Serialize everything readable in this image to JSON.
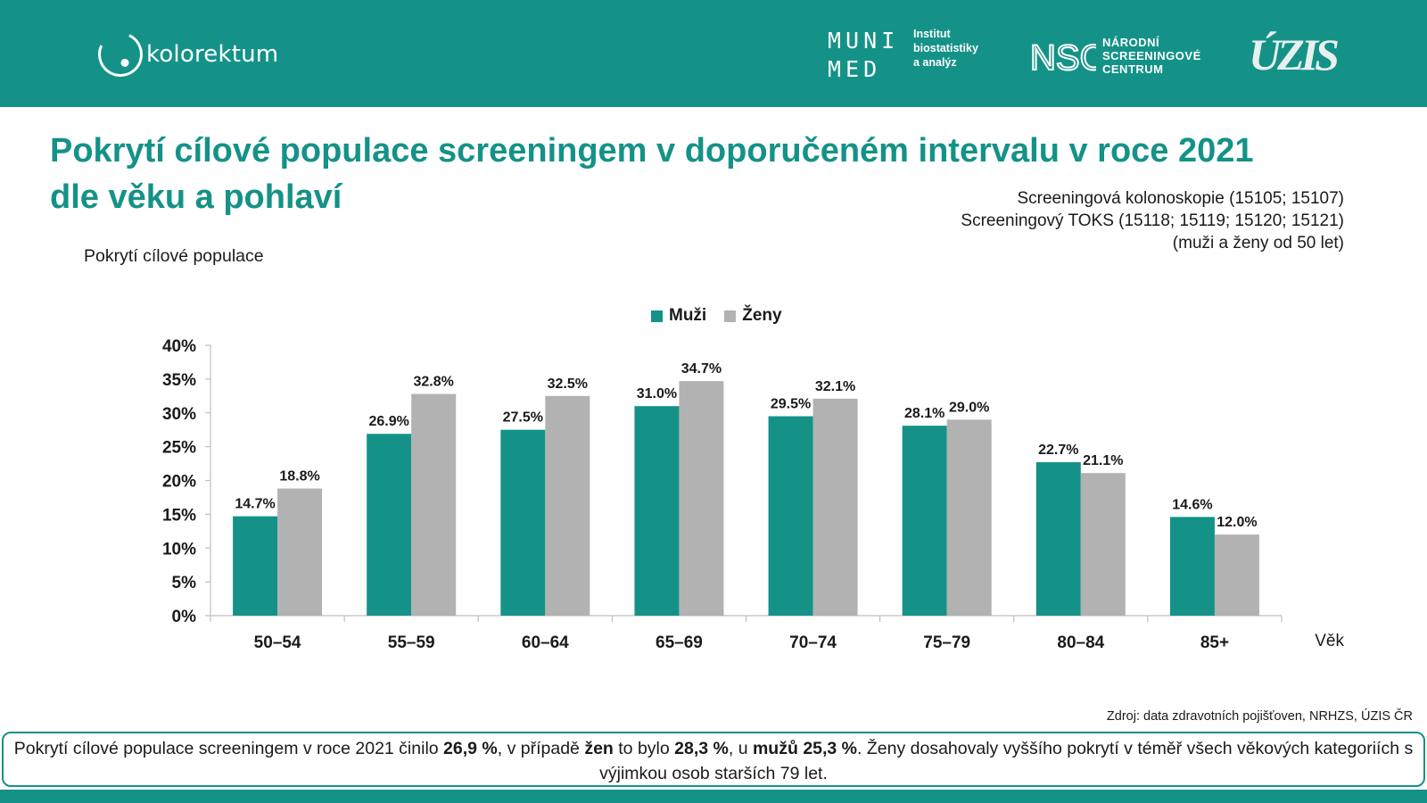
{
  "header": {
    "brand": "kolorektum",
    "muni_line1": "MUNI",
    "muni_line2": "MED",
    "muni_sub": [
      "Institut",
      "biostatistiky",
      "a analýz"
    ],
    "nsc_logo": "NSC",
    "nsc_name": [
      "NÁRODNÍ",
      "SCREENINGOVÉ",
      "CENTRUM"
    ],
    "uzis_logo": "ÚZIS",
    "background_color": "#149288"
  },
  "title_line1": "Pokrytí cílové populace screeningem v doporučeném intervalu v roce 2021",
  "title_line2": "dle věku a pohlaví",
  "note": [
    "Screeningová kolonoskopie (15105; 15107)",
    "Screeningový TOKS (15118; 15119; 15120; 15121)",
    "(muži a ženy od 50 let)"
  ],
  "source": "Zdroj: data zdravotních pojišťoven, NRHZS, ÚZIS ČR",
  "summary": {
    "p1": "Pokrytí cílové populace screeningem v roce 2021 činilo ",
    "b1": "26,9 %",
    "p2": ", v případě ",
    "b2": "žen",
    "p3": " to bylo ",
    "b3": "28,3 %",
    "p4": ", u ",
    "b4": "mužů",
    "p5": " ",
    "b5": "25,3 %",
    "p6": ". Ženy dosahovaly vyššího pokrytí v téměř všech věkových kategoriích s výjimkou osob starších 79 let."
  },
  "chart_data": {
    "type": "bar",
    "ylabel": "Pokrytí cílové populace",
    "xlabel": "Věk",
    "categories": [
      "50–54",
      "55–59",
      "60–64",
      "65–69",
      "70–74",
      "75–79",
      "80–84",
      "85+"
    ],
    "series": [
      {
        "name": "Muži",
        "color": "#149288",
        "values": [
          14.7,
          26.9,
          27.5,
          31.0,
          29.5,
          28.1,
          22.7,
          14.6
        ]
      },
      {
        "name": "Ženy",
        "color": "#b2b2b2",
        "values": [
          18.8,
          32.8,
          32.5,
          34.7,
          32.1,
          29.0,
          21.1,
          12.0
        ]
      }
    ],
    "ylim": [
      0,
      40
    ],
    "yticks": [
      0,
      5,
      10,
      15,
      20,
      25,
      30,
      35,
      40
    ],
    "ytick_suffix": "%",
    "label_suffix": "%",
    "grid": false,
    "legend_position": "top-center"
  }
}
